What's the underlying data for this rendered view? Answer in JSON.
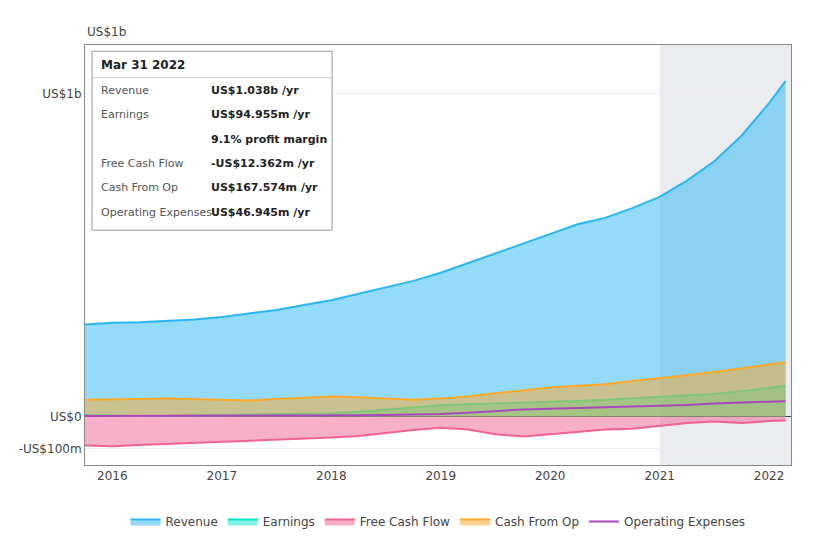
{
  "chart_data": {
    "type": "line",
    "x": [
      2015.75,
      2016.0,
      2016.25,
      2016.5,
      2016.75,
      2017.0,
      2017.25,
      2017.5,
      2017.75,
      2018.0,
      2018.25,
      2018.5,
      2018.75,
      2019.0,
      2019.25,
      2019.5,
      2019.75,
      2020.0,
      2020.25,
      2020.5,
      2020.75,
      2021.0,
      2021.25,
      2021.5,
      2021.75,
      2022.0,
      2022.15
    ],
    "series": [
      {
        "name": "Revenue",
        "type": "area",
        "color": "#29b6f6",
        "values": [
          285,
          290,
          292,
          295,
          300,
          308,
          318,
          330,
          345,
          360,
          380,
          400,
          420,
          445,
          475,
          505,
          535,
          565,
          595,
          615,
          645,
          680,
          730,
          790,
          870,
          970,
          1038
        ]
      },
      {
        "name": "Earnings",
        "type": "area",
        "color": "#00e5cc",
        "values": [
          5,
          3,
          2,
          2,
          3,
          4,
          5,
          6,
          8,
          10,
          15,
          22,
          30,
          35,
          38,
          40,
          42,
          44,
          48,
          52,
          56,
          60,
          65,
          70,
          78,
          88,
          95
        ]
      },
      {
        "name": "Free Cash Flow",
        "type": "area",
        "color": "#f06292",
        "values": [
          -90,
          -92,
          -88,
          -85,
          -80,
          -78,
          -75,
          -72,
          -68,
          -65,
          -60,
          -50,
          -42,
          -35,
          -40,
          -55,
          -62,
          -55,
          -48,
          -40,
          -38,
          -30,
          -20,
          -15,
          -20,
          -14,
          -12
        ]
      },
      {
        "name": "Cash From Op",
        "type": "area",
        "color": "#ffa726",
        "values": [
          52,
          52,
          54,
          56,
          54,
          52,
          50,
          54,
          58,
          62,
          60,
          56,
          52,
          56,
          62,
          72,
          80,
          90,
          95,
          100,
          110,
          118,
          128,
          138,
          150,
          162,
          168
        ]
      },
      {
        "name": "Operating Expenses",
        "type": "line",
        "color": "#ab47bc",
        "values": [
          2,
          2,
          2,
          2,
          2,
          2,
          2,
          3,
          3,
          3,
          4,
          5,
          6,
          8,
          12,
          18,
          22,
          24,
          26,
          28,
          30,
          32,
          36,
          40,
          44,
          46,
          47
        ]
      }
    ],
    "xlim": [
      2015.75,
      2022.2
    ],
    "ylim": [
      -150,
      1150
    ],
    "xticks": [
      2016,
      2017,
      2018,
      2019,
      2020,
      2021,
      2022
    ],
    "yticks": [
      {
        "value": 1000,
        "label": "US$1b"
      },
      {
        "value": 0,
        "label": "US$0"
      },
      {
        "value": -100,
        "label": "-US$100m"
      }
    ],
    "grid": "y",
    "legend": "bottom",
    "highlight": [
      2021.0,
      2022.2
    ],
    "annotations": [
      "US$1b"
    ],
    "info_box": {
      "title": "Mar 31 2022",
      "rows": [
        {
          "label": "Revenue",
          "value": "US$1.038b /yr"
        },
        {
          "label": "Earnings",
          "value": "US$94.955m /yr"
        },
        {
          "value": "9.1% profit margin"
        },
        {
          "label": "Free Cash Flow",
          "value": "-US$12.362m /yr"
        },
        {
          "label": "Cash From Op",
          "value": "US$167.574m /yr"
        },
        {
          "label": "Operating Expenses",
          "value": "US$46.945m /yr"
        }
      ]
    }
  }
}
